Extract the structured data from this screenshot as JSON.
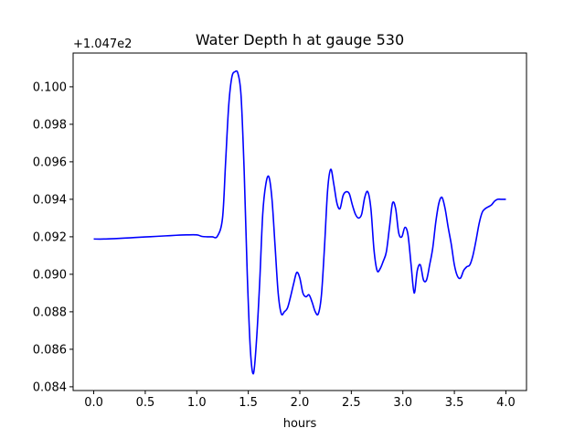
{
  "chart_data": {
    "type": "line",
    "title": "Water Depth h at gauge 530",
    "xlabel": "hours",
    "ylabel": "",
    "offset_text": "+1.047e2",
    "xlim": [
      -0.2,
      4.2
    ],
    "ylim": [
      0.0838,
      0.1018
    ],
    "x_ticks": [
      0.0,
      0.5,
      1.0,
      1.5,
      2.0,
      2.5,
      3.0,
      3.5,
      4.0
    ],
    "x_tick_labels": [
      "0.0",
      "0.5",
      "1.0",
      "1.5",
      "2.0",
      "2.5",
      "3.0",
      "3.5",
      "4.0"
    ],
    "y_ticks": [
      0.084,
      0.086,
      0.088,
      0.09,
      0.092,
      0.094,
      0.096,
      0.098,
      0.1
    ],
    "y_tick_labels": [
      "0.084",
      "0.086",
      "0.088",
      "0.090",
      "0.092",
      "0.094",
      "0.096",
      "0.098",
      "0.100"
    ],
    "grid": false,
    "line_color": "#0000ff",
    "series": [
      {
        "x": [
          0.0,
          0.1,
          0.2,
          0.3,
          0.4,
          0.5,
          0.6,
          0.7,
          0.8,
          0.9,
          1.0,
          1.05,
          1.1,
          1.15,
          1.2,
          1.25,
          1.28,
          1.31,
          1.34,
          1.37,
          1.4,
          1.43,
          1.46,
          1.49,
          1.52,
          1.55,
          1.58,
          1.61,
          1.64,
          1.67,
          1.7,
          1.73,
          1.76,
          1.79,
          1.82,
          1.85,
          1.88,
          1.91,
          1.94,
          1.97,
          2.0,
          2.03,
          2.06,
          2.09,
          2.12,
          2.15,
          2.18,
          2.21,
          2.24,
          2.27,
          2.3,
          2.33,
          2.36,
          2.39,
          2.42,
          2.45,
          2.48,
          2.51,
          2.54,
          2.57,
          2.6,
          2.63,
          2.66,
          2.69,
          2.72,
          2.75,
          2.78,
          2.81,
          2.84,
          2.87,
          2.9,
          2.93,
          2.96,
          2.99,
          3.02,
          3.05,
          3.08,
          3.11,
          3.14,
          3.17,
          3.2,
          3.23,
          3.26,
          3.29,
          3.32,
          3.35,
          3.38,
          3.41,
          3.44,
          3.47,
          3.5,
          3.53,
          3.56,
          3.59,
          3.62,
          3.65,
          3.68,
          3.71,
          3.74,
          3.77,
          3.8,
          3.83,
          3.86,
          3.89,
          3.92,
          3.95,
          3.98,
          4.0
        ],
        "y": [
          0.09188,
          0.09188,
          0.0919,
          0.09193,
          0.09196,
          0.09199,
          0.09202,
          0.09205,
          0.09208,
          0.0921,
          0.0921,
          0.09202,
          0.092,
          0.092,
          0.09203,
          0.093,
          0.096,
          0.099,
          0.1005,
          0.1008,
          0.1007,
          0.0995,
          0.0955,
          0.09,
          0.086,
          0.0847,
          0.0865,
          0.0895,
          0.0932,
          0.0948,
          0.0952,
          0.094,
          0.0915,
          0.089,
          0.0879,
          0.088,
          0.0882,
          0.0888,
          0.0895,
          0.0901,
          0.0898,
          0.089,
          0.0888,
          0.0889,
          0.0885,
          0.088,
          0.0879,
          0.0889,
          0.0915,
          0.0945,
          0.0956,
          0.0948,
          0.0938,
          0.0935,
          0.0942,
          0.0944,
          0.0943,
          0.0937,
          0.0932,
          0.093,
          0.0932,
          0.0941,
          0.0944,
          0.0935,
          0.0913,
          0.0902,
          0.0903,
          0.0907,
          0.0912,
          0.0925,
          0.0938,
          0.0935,
          0.0922,
          0.092,
          0.0925,
          0.0921,
          0.0905,
          0.089,
          0.0902,
          0.0905,
          0.0897,
          0.0897,
          0.0905,
          0.0914,
          0.0928,
          0.0938,
          0.0941,
          0.0935,
          0.0925,
          0.0916,
          0.0905,
          0.0899,
          0.0898,
          0.0902,
          0.0904,
          0.0905,
          0.091,
          0.0918,
          0.0927,
          0.0933,
          0.0935,
          0.0936,
          0.0937,
          0.0939,
          0.094,
          0.094,
          0.094,
          0.094
        ]
      }
    ]
  }
}
